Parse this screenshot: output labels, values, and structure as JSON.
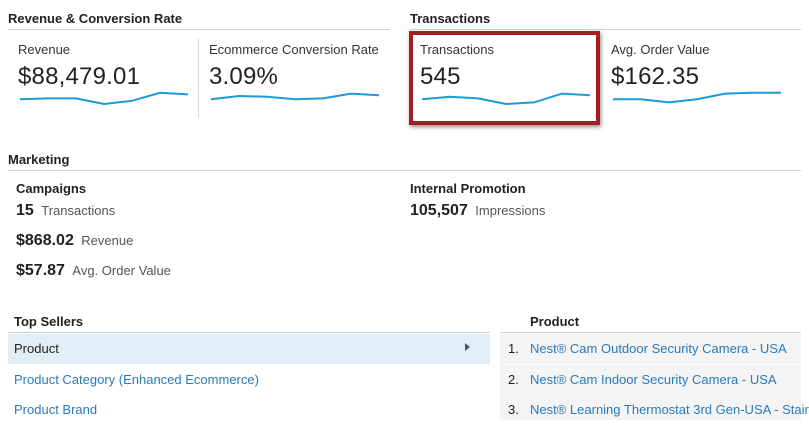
{
  "revenue_section": {
    "title": "Revenue & Conversion Rate",
    "cards": [
      {
        "label": "Revenue",
        "value": "$88,479.01",
        "trend": [
          0.55,
          0.6,
          0.6,
          0.25,
          0.45,
          0.95,
          0.85
        ]
      },
      {
        "label": "Ecommerce Conversion Rate",
        "value": "3.09%",
        "trend": [
          0.55,
          0.75,
          0.7,
          0.55,
          0.6,
          0.9,
          0.8
        ]
      }
    ]
  },
  "transactions_section": {
    "title": "Transactions",
    "cards": [
      {
        "label": "Transactions",
        "value": "545",
        "trend": [
          0.55,
          0.7,
          0.6,
          0.25,
          0.35,
          0.9,
          0.8
        ]
      },
      {
        "label": "Avg. Order Value",
        "value": "$162.35",
        "trend": [
          0.55,
          0.55,
          0.35,
          0.55,
          0.9,
          0.95,
          0.95
        ]
      }
    ],
    "highlight_color": "#a31f1f"
  },
  "marketing": {
    "title": "Marketing",
    "campaigns": {
      "heading": "Campaigns",
      "transactions_value": "15",
      "transactions_label": "Transactions",
      "revenue_value": "$868.02",
      "revenue_label": "Revenue",
      "aov_value": "$57.87",
      "aov_label": "Avg. Order Value"
    },
    "internal_promotion": {
      "heading": "Internal Promotion",
      "value": "105,507",
      "label": "Impressions"
    }
  },
  "top_sellers": {
    "heading": "Top Sellers",
    "items": [
      {
        "label": "Product",
        "selected": true
      },
      {
        "label": "Product Category (Enhanced Ecommerce)",
        "selected": false
      },
      {
        "label": "Product Brand",
        "selected": false
      }
    ]
  },
  "products": {
    "heading": "Product",
    "items": [
      {
        "rank": "1.",
        "name": "Nest® Cam Outdoor Security Camera - USA"
      },
      {
        "rank": "2.",
        "name": "Nest® Cam Indoor Security Camera - USA"
      },
      {
        "rank": "3.",
        "name": "Nest® Learning Thermostat 3rd Gen-USA - Stair"
      }
    ]
  },
  "colors": {
    "accent": "#1a9bd7",
    "link": "#2a7ab8",
    "selected_bg": "#e2eef7"
  }
}
